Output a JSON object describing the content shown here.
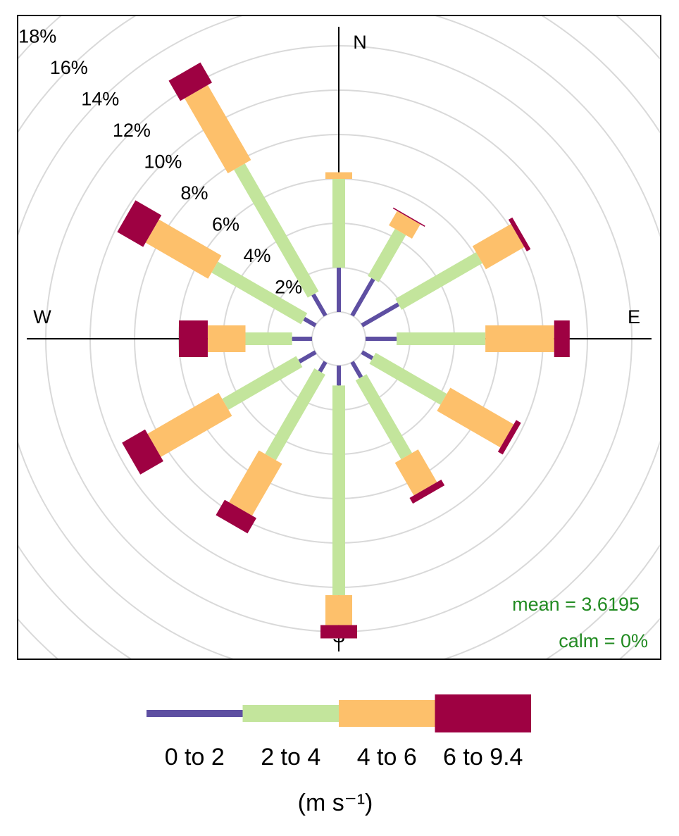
{
  "chart_data": {
    "type": "windrose",
    "directions": [
      "N",
      "E",
      "S",
      "W"
    ],
    "x": [
      0,
      30,
      60,
      90,
      120,
      150,
      180,
      210,
      240,
      270,
      300,
      330
    ],
    "series": [
      {
        "name": "0 to 2",
        "color": "#5e4fa2",
        "values": [
          2.0,
          1.9,
          1.9,
          1.4,
          0.55,
          0.8,
          0.9,
          0.5,
          0.85,
          0.9,
          0.6,
          1.1
        ]
      },
      {
        "name": "2 to 4",
        "color": "#c3e59c",
        "values": [
          4.0,
          2.45,
          4.2,
          4.0,
          3.7,
          4.1,
          9.45,
          4.45,
          3.85,
          2.1,
          4.65,
          6.65
        ]
      },
      {
        "name": "4 to 6",
        "color": "#fdc06b",
        "values": [
          0.3,
          0.75,
          2.0,
          3.1,
          3.3,
          1.7,
          1.35,
          2.7,
          3.7,
          1.7,
          3.25,
          3.9
        ]
      },
      {
        "name": "6 to 9.4",
        "color": "#9e0142",
        "values": [
          0,
          0.05,
          0.2,
          0.7,
          0.25,
          0.3,
          0.6,
          0.8,
          1.2,
          1.3,
          1.35,
          1.05
        ]
      }
    ],
    "yticks": [
      {
        "value": 2,
        "label": "2%"
      },
      {
        "value": 4,
        "label": "4%"
      },
      {
        "value": 6,
        "label": "6%"
      },
      {
        "value": 8,
        "label": "8%"
      },
      {
        "value": 10,
        "label": "10%"
      },
      {
        "value": 12,
        "label": "12%"
      },
      {
        "value": 14,
        "label": "14%"
      },
      {
        "value": 16,
        "label": "16%"
      },
      {
        "value": 18,
        "label": "18%"
      }
    ],
    "annotations": [
      "mean = 3.6195",
      "calm = 0%"
    ],
    "legend_unit": "(m s⁻¹)",
    "grid": true
  }
}
